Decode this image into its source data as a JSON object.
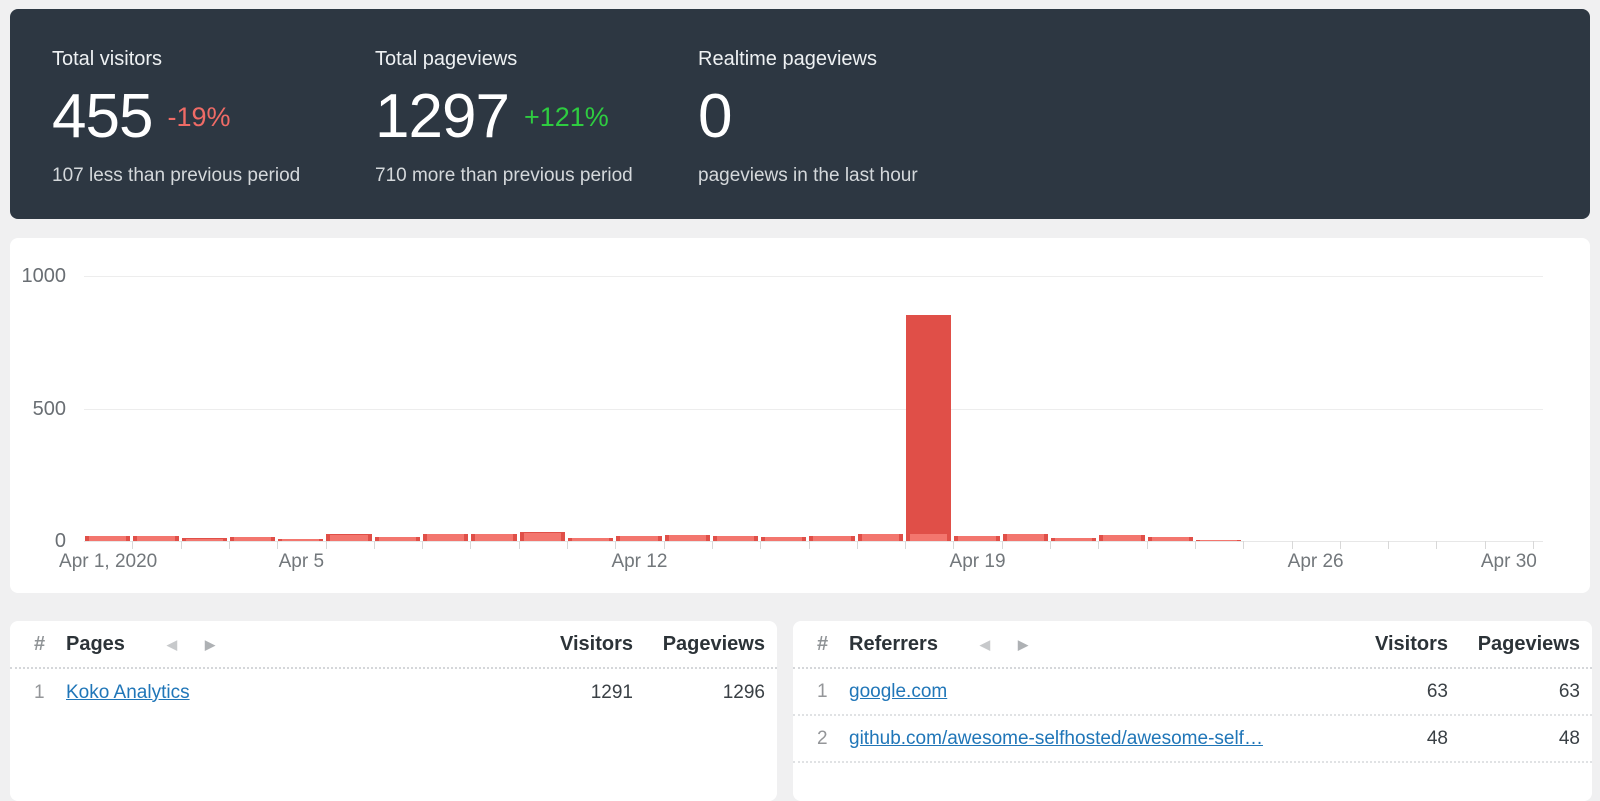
{
  "stats": {
    "cards": [
      {
        "title": "Total visitors",
        "value": "455",
        "change": "-19%",
        "change_color": "#ef6b66",
        "subtitle": "107 less than previous period"
      },
      {
        "title": "Total pageviews",
        "value": "1297",
        "change": "+121%",
        "change_color": "#2ecc40",
        "subtitle": "710 more than previous period"
      },
      {
        "title": "Realtime pageviews",
        "value": "0",
        "change": "",
        "change_color": "#2ecc40",
        "subtitle": "pageviews in the last hour"
      }
    ]
  },
  "chart_data": {
    "type": "bar",
    "title": "",
    "xlabel": "",
    "ylabel": "",
    "ylim": [
      0,
      1000
    ],
    "grid": true,
    "legend": "none",
    "categories": [
      "Apr 1",
      "Apr 2",
      "Apr 3",
      "Apr 4",
      "Apr 5",
      "Apr 6",
      "Apr 7",
      "Apr 8",
      "Apr 9",
      "Apr 10",
      "Apr 11",
      "Apr 12",
      "Apr 13",
      "Apr 14",
      "Apr 15",
      "Apr 16",
      "Apr 17",
      "Apr 18",
      "Apr 19",
      "Apr 20",
      "Apr 21",
      "Apr 22",
      "Apr 23",
      "Apr 24",
      "Apr 25",
      "Apr 26",
      "Apr 27",
      "Apr 28",
      "Apr 29",
      "Apr 30"
    ],
    "series": [
      {
        "name": "Pageviews",
        "color": "#e04f48",
        "values": [
          20,
          18,
          10,
          16,
          9,
          25,
          16,
          28,
          28,
          35,
          12,
          19,
          24,
          20,
          15,
          20,
          28,
          852,
          19,
          27,
          13,
          24,
          16,
          3,
          0,
          0,
          0,
          0,
          0,
          0
        ]
      },
      {
        "name": "Visitors",
        "color": "#f3766e",
        "values": [
          20,
          17,
          9,
          15,
          8,
          24,
          15,
          27,
          27,
          32,
          11,
          19,
          23,
          20,
          14,
          20,
          27,
          28,
          19,
          26,
          12,
          23,
          16,
          3,
          0,
          0,
          0,
          0,
          0,
          0
        ]
      }
    ],
    "y_ticks": [
      "1000",
      "500",
      "0"
    ],
    "x_tick_labels": [
      {
        "label": "Apr 1, 2020",
        "slot": 0
      },
      {
        "label": "Apr 5",
        "slot": 4
      },
      {
        "label": "Apr 12",
        "slot": 11
      },
      {
        "label": "Apr 19",
        "slot": 18
      },
      {
        "label": "Apr 26",
        "slot": 25
      },
      {
        "label": "Apr 30",
        "slot": 29
      }
    ]
  },
  "pages_table": {
    "hash": "#",
    "title": "Pages",
    "prev_arrow": "◀",
    "next_arrow": "▶",
    "col_visitors": "Visitors",
    "col_pageviews": "Pageviews",
    "rows": [
      {
        "rank": "1",
        "label": "Koko Analytics",
        "visitors": "1291",
        "pageviews": "1296"
      }
    ]
  },
  "referrers_table": {
    "hash": "#",
    "title": "Referrers",
    "prev_arrow": "◀",
    "next_arrow": "▶",
    "col_visitors": "Visitors",
    "col_pageviews": "Pageviews",
    "rows": [
      {
        "rank": "1",
        "label": "google.com",
        "visitors": "63",
        "pageviews": "63"
      },
      {
        "rank": "2",
        "label": "github.com/awesome-selfhosted/awesome-self…",
        "visitors": "48",
        "pageviews": "48"
      }
    ]
  }
}
